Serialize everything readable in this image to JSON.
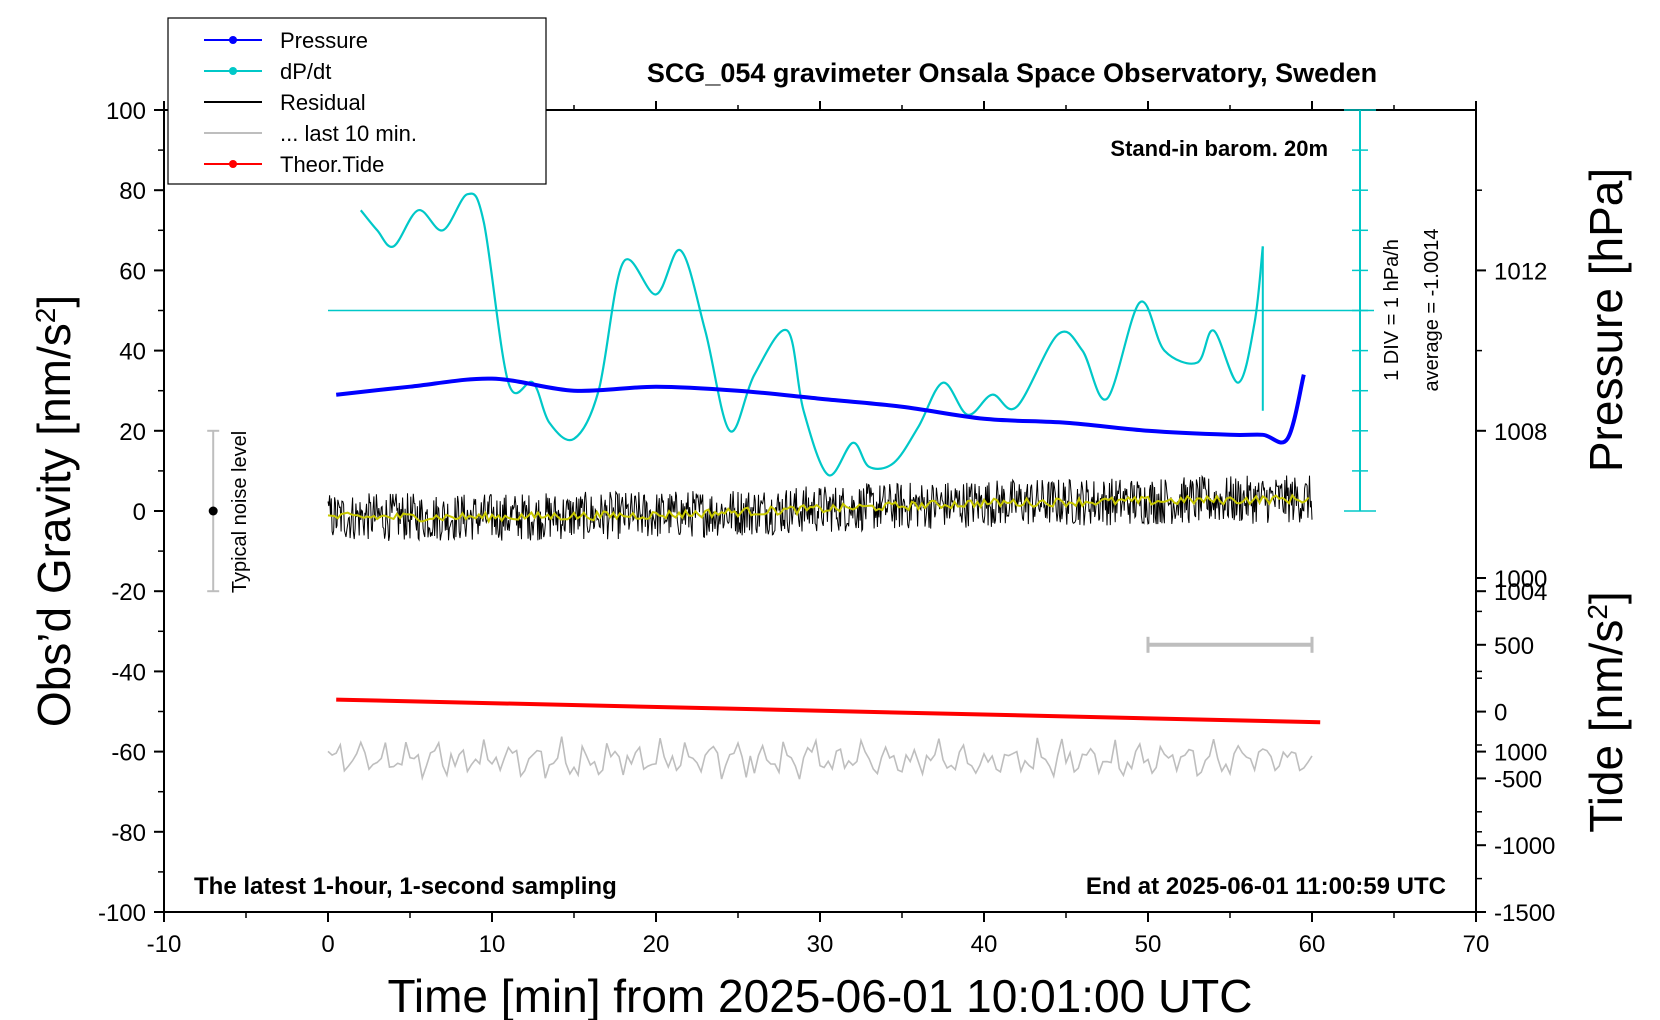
{
  "chart_data": {
    "type": "line",
    "title": "SCG_054 gravimeter Onsala Space Observatory, Sweden",
    "xlabel": "Time [min] from 2025-06-01 10:01:00 UTC",
    "ylabel_left": {
      "text": "Obs’d Gravity [nm/s",
      "sup": "2",
      "end": "]"
    },
    "ylabel_right_pressure": "Pressure [hPa]",
    "ylabel_right_tide": {
      "text": "Tide [nm/s",
      "sup": "2",
      "end": "]"
    },
    "xlim": [
      -10,
      70
    ],
    "ylim_gravity": [
      -100,
      100
    ],
    "ylim_pressure": [
      996,
      1016
    ],
    "ylim_tide": [
      -1500,
      1000
    ],
    "x_ticks": [
      "-10",
      "0",
      "10",
      "20",
      "30",
      "40",
      "50",
      "60",
      "70"
    ],
    "y_ticks_gravity": [
      "100",
      "80",
      "60",
      "40",
      "20",
      "0",
      "-20",
      "-40",
      "-60",
      "-80",
      "-100"
    ],
    "y_ticks_pressure": [
      "1012",
      "1008",
      "1004",
      "1000"
    ],
    "y_ticks_tide": [
      "1000",
      "500",
      "0",
      "-500",
      "-1000",
      "-1500"
    ],
    "annotations": {
      "stand_in": "Stand-in barom. 20m",
      "latest": "The latest 1-hour, 1-second sampling",
      "end_at": "End at 2025-06-01 11:00:59 UTC",
      "noise": "Typical noise level",
      "div": "1 DIV = 1 hPa/h",
      "average": "average = -1.0014"
    },
    "legend": [
      {
        "label": "Pressure",
        "color": "#0000ff",
        "marker": true
      },
      {
        "label": "dP/dt",
        "color": "#00c8c8",
        "marker": true
      },
      {
        "label": "Residual",
        "color": "#000000",
        "marker": false
      },
      {
        "label": "... last 10 min.",
        "color": "#bebebe",
        "marker": false
      },
      {
        "label": "Theor.Tide",
        "color": "#ff0000",
        "marker": true
      }
    ],
    "legend_position": "top-left",
    "series": [
      {
        "name": "Pressure",
        "axis": "pressure",
        "color": "#0000ff",
        "x": [
          0.5,
          5,
          10,
          15,
          20,
          25,
          30,
          35,
          40,
          45,
          50,
          55,
          57,
          58.5,
          59.5
        ],
        "y": [
          1008.9,
          1009.1,
          1009.3,
          1009.0,
          1009.1,
          1009.0,
          1008.8,
          1008.6,
          1008.3,
          1008.2,
          1008.0,
          1007.9,
          1007.9,
          1007.8,
          1009.4
        ]
      },
      {
        "name": "dP/dt",
        "axis": "gravity",
        "color": "#00c8c8",
        "x": [
          2,
          3,
          4,
          5.5,
          7,
          8.5,
          9.5,
          11,
          12.5,
          13.5,
          15,
          16.5,
          18,
          20,
          21.5,
          23,
          24.5,
          26,
          28,
          29,
          30.5,
          32,
          33,
          34.5,
          36,
          37.5,
          39,
          40.5,
          42,
          44.5,
          46,
          47.5,
          49.5,
          51,
          53,
          54,
          55.5,
          56.5,
          57
        ],
        "y": [
          75,
          70,
          66,
          75,
          70,
          79,
          72,
          32,
          32,
          22,
          18,
          30,
          62,
          54,
          65,
          45,
          20,
          34,
          45,
          25,
          9,
          17,
          11,
          12,
          21,
          32,
          24,
          29,
          26,
          44,
          40,
          28,
          52,
          40,
          37,
          45,
          32,
          47,
          66
        ]
      },
      {
        "name": "Residual",
        "axis": "gravity",
        "color": "#000000",
        "x": [
          0,
          10,
          20,
          30,
          40,
          50,
          60
        ],
        "y": [
          -1.5,
          -1.5,
          -1.0,
          0.5,
          2.0,
          2.5,
          3.0
        ]
      },
      {
        "name": "... last 10 min.",
        "axis": "gravity",
        "color": "#bebebe",
        "x": [
          0,
          30,
          60
        ],
        "y": [
          -62,
          -62,
          -62
        ]
      },
      {
        "name": "Theor.Tide",
        "axis": "tide",
        "color": "#ff0000",
        "x": [
          0.5,
          60.5
        ],
        "y": [
          90,
          -80
        ]
      }
    ],
    "cyan_reference_level": 50,
    "last10_bar": [
      50,
      60
    ],
    "noise_bar": {
      "x": -7,
      "center": 0,
      "range": [
        -20,
        20
      ]
    },
    "grid": false
  }
}
